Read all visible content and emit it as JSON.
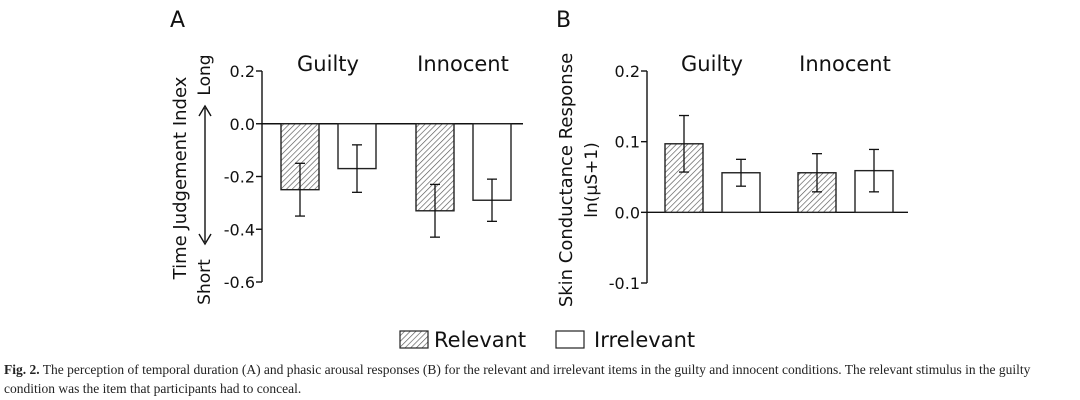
{
  "figure": {
    "legend": [
      "Relevant",
      "Irrelevant"
    ],
    "caption_label": "Fig. 2.",
    "caption_text": "The perception of temporal duration (A) and phasic arousal responses (B) for the relevant and irrelevant items in the guilty and innocent conditions. The relevant stimulus in the guilty condition was the item that participants had to conceal."
  },
  "chart_data": [
    {
      "type": "bar",
      "panel_label": "A",
      "groups": [
        "Guilty",
        "Innocent"
      ],
      "ylabel": "Time Judgement Index",
      "ylabel_arrow_top": "Long",
      "ylabel_arrow_bottom": "Short",
      "ylim": [
        -0.6,
        0.2
      ],
      "yticks": [
        "0.2",
        "0.0",
        "-0.2",
        "-0.4",
        "-0.6"
      ],
      "ytick_values": [
        0.2,
        0.0,
        -0.2,
        -0.4,
        -0.6
      ],
      "series": [
        {
          "name": "Relevant",
          "values": [
            -0.25,
            -0.33
          ],
          "err": [
            0.1,
            0.1
          ]
        },
        {
          "name": "Irrelevant",
          "values": [
            -0.17,
            -0.29
          ],
          "err": [
            0.09,
            0.08
          ]
        }
      ]
    },
    {
      "type": "bar",
      "panel_label": "B",
      "groups": [
        "Guilty",
        "Innocent"
      ],
      "ylabel": "Skin Conductance Response",
      "ylabel2": "ln(μS+1)",
      "ylim": [
        -0.1,
        0.2
      ],
      "yticks": [
        "0.2",
        "0.1",
        "0.0",
        "-0.1"
      ],
      "ytick_values": [
        0.2,
        0.1,
        0.0,
        -0.1
      ],
      "series": [
        {
          "name": "Relevant",
          "values": [
            0.097,
            0.056
          ],
          "err": [
            0.04,
            0.027
          ]
        },
        {
          "name": "Irrelevant",
          "values": [
            0.056,
            0.059
          ],
          "err": [
            0.019,
            0.03
          ]
        }
      ]
    }
  ],
  "colors": {
    "bar_edge": "#222222",
    "hatch": "#555555",
    "text": "#111111"
  }
}
